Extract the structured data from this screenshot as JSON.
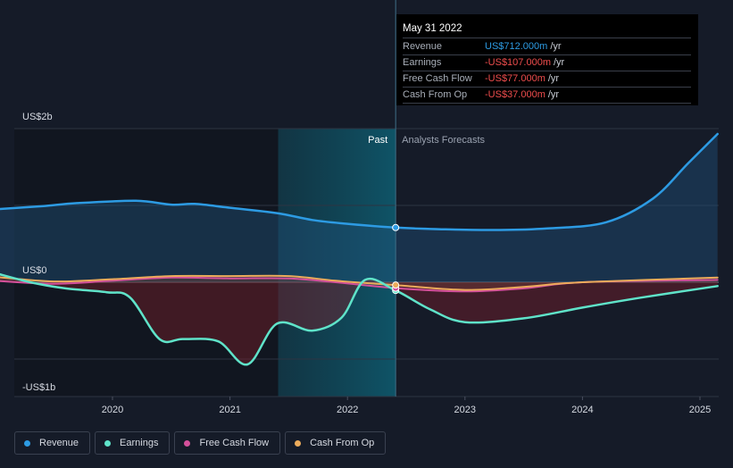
{
  "colors": {
    "revenue": "#2d9be3",
    "earnings": "#5fe3c9",
    "free_cash_flow": "#d4509b",
    "cash_from_op": "#ecab5b",
    "background": "#151b28"
  },
  "tooltip": {
    "date": "May 31 2022",
    "rows": [
      {
        "label": "Revenue",
        "value": "US$712.000m",
        "unit": "/yr",
        "color": "#2d9be3"
      },
      {
        "label": "Earnings",
        "value": "-US$107.000m",
        "unit": "/yr",
        "color": "#ef4d4d"
      },
      {
        "label": "Free Cash Flow",
        "value": "-US$77.000m",
        "unit": "/yr",
        "color": "#ef4d4d"
      },
      {
        "label": "Cash From Op",
        "value": "-US$37.000m",
        "unit": "/yr",
        "color": "#ef4d4d"
      }
    ]
  },
  "regions": {
    "past": "Past",
    "forecast": "Analysts Forecasts"
  },
  "legend": [
    {
      "key": "revenue",
      "label": "Revenue",
      "color": "#2d9be3"
    },
    {
      "key": "earnings",
      "label": "Earnings",
      "color": "#5fe3c9"
    },
    {
      "key": "free_cash_flow",
      "label": "Free Cash Flow",
      "color": "#d4509b"
    },
    {
      "key": "cash_from_op",
      "label": "Cash From Op",
      "color": "#ecab5b"
    }
  ],
  "chart_data": {
    "type": "area",
    "unit": "US$ billions",
    "y_tick_labels": [
      {
        "value": 2,
        "label": "US$2b"
      },
      {
        "value": 0,
        "label": "US$0"
      },
      {
        "value": -1,
        "label": "-US$1b"
      }
    ],
    "x_tick_labels": [
      {
        "value": 2020,
        "label": "2020"
      },
      {
        "value": 2021,
        "label": "2021"
      },
      {
        "value": 2022,
        "label": "2022"
      },
      {
        "value": 2023,
        "label": "2023"
      },
      {
        "value": 2024,
        "label": "2024"
      },
      {
        "value": 2025,
        "label": "2025"
      }
    ],
    "xlim": [
      2018.75,
      2025.15
    ],
    "ylim": [
      -1.5,
      2.0
    ],
    "grid": true,
    "divider_x": 2022.41,
    "shaded_band": [
      2021.41,
      2022.41
    ],
    "highlight_x": 2022.41,
    "series": [
      {
        "name": "Revenue",
        "key": "revenue",
        "points": [
          [
            2019.0,
            0.95
          ],
          [
            2019.4,
            0.99
          ],
          [
            2019.7,
            1.03
          ],
          [
            2020.2,
            1.06
          ],
          [
            2020.5,
            1.01
          ],
          [
            2020.7,
            1.02
          ],
          [
            2021.0,
            0.97
          ],
          [
            2021.4,
            0.9
          ],
          [
            2021.7,
            0.81
          ],
          [
            2022.0,
            0.76
          ],
          [
            2022.41,
            0.712
          ],
          [
            2022.8,
            0.69
          ],
          [
            2023.3,
            0.68
          ],
          [
            2023.7,
            0.7
          ],
          [
            2024.2,
            0.78
          ],
          [
            2024.6,
            1.09
          ],
          [
            2024.9,
            1.55
          ],
          [
            2025.15,
            1.93
          ]
        ]
      },
      {
        "name": "Earnings",
        "key": "earnings",
        "points": [
          [
            2019.0,
            0.12
          ],
          [
            2019.3,
            0.0
          ],
          [
            2019.6,
            -0.08
          ],
          [
            2019.95,
            -0.13
          ],
          [
            2020.15,
            -0.2
          ],
          [
            2020.4,
            -0.74
          ],
          [
            2020.6,
            -0.74
          ],
          [
            2020.9,
            -0.77
          ],
          [
            2021.15,
            -1.07
          ],
          [
            2021.4,
            -0.54
          ],
          [
            2021.7,
            -0.63
          ],
          [
            2021.95,
            -0.46
          ],
          [
            2022.15,
            0.03
          ],
          [
            2022.41,
            -0.107
          ],
          [
            2022.7,
            -0.35
          ],
          [
            2023.0,
            -0.52
          ],
          [
            2023.5,
            -0.47
          ],
          [
            2024.0,
            -0.33
          ],
          [
            2024.5,
            -0.2
          ],
          [
            2025.15,
            -0.05
          ]
        ]
      },
      {
        "name": "Free Cash Flow",
        "key": "free_cash_flow",
        "points": [
          [
            2019.0,
            0.02
          ],
          [
            2019.5,
            -0.02
          ],
          [
            2020.0,
            0.02
          ],
          [
            2020.5,
            0.06
          ],
          [
            2021.0,
            0.05
          ],
          [
            2021.5,
            0.05
          ],
          [
            2021.9,
            0.0
          ],
          [
            2022.41,
            -0.077
          ],
          [
            2023.0,
            -0.12
          ],
          [
            2023.5,
            -0.08
          ],
          [
            2024.0,
            0.0
          ],
          [
            2025.15,
            0.03
          ]
        ]
      },
      {
        "name": "Cash From Op",
        "key": "cash_from_op",
        "points": [
          [
            2019.0,
            0.07
          ],
          [
            2019.5,
            0.01
          ],
          [
            2020.0,
            0.04
          ],
          [
            2020.5,
            0.08
          ],
          [
            2021.0,
            0.08
          ],
          [
            2021.5,
            0.08
          ],
          [
            2021.9,
            0.02
          ],
          [
            2022.41,
            -0.037
          ],
          [
            2023.0,
            -0.1
          ],
          [
            2023.5,
            -0.06
          ],
          [
            2024.0,
            0.0
          ],
          [
            2025.15,
            0.06
          ]
        ]
      }
    ]
  }
}
